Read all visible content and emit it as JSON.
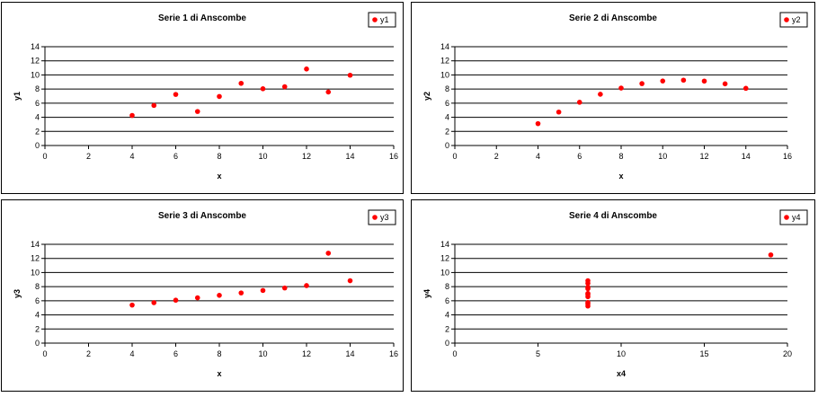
{
  "colors": {
    "marker": "#ff0000",
    "grid": "#000000",
    "axis": "#000000"
  },
  "chart_data": [
    {
      "type": "scatter",
      "title": "Serie 1 di Anscombe",
      "xlabel": "x",
      "ylabel": "y1",
      "xlim": [
        0,
        16
      ],
      "ylim": [
        0,
        14
      ],
      "xticks": [
        0,
        2,
        4,
        6,
        8,
        10,
        12,
        14,
        16
      ],
      "yticks": [
        0,
        2,
        4,
        6,
        8,
        10,
        12,
        14
      ],
      "grid": "horizontal",
      "legend_position": "top-right",
      "series": [
        {
          "name": "y1",
          "x": [
            4,
            5,
            6,
            7,
            8,
            9,
            10,
            11,
            12,
            13,
            14
          ],
          "y": [
            4.26,
            5.68,
            7.24,
            4.82,
            6.95,
            8.81,
            8.04,
            8.33,
            10.84,
            7.58,
            9.96
          ]
        }
      ]
    },
    {
      "type": "scatter",
      "title": "Serie 2 di Anscombe",
      "xlabel": "x",
      "ylabel": "y2",
      "xlim": [
        0,
        16
      ],
      "ylim": [
        0,
        14
      ],
      "xticks": [
        0,
        2,
        4,
        6,
        8,
        10,
        12,
        14,
        16
      ],
      "yticks": [
        0,
        2,
        4,
        6,
        8,
        10,
        12,
        14
      ],
      "grid": "horizontal",
      "legend_position": "top-right",
      "series": [
        {
          "name": "y2",
          "x": [
            4,
            5,
            6,
            7,
            8,
            9,
            10,
            11,
            12,
            13,
            14
          ],
          "y": [
            3.1,
            4.74,
            6.13,
            7.26,
            8.14,
            8.77,
            9.14,
            9.26,
            9.13,
            8.74,
            8.1
          ]
        }
      ]
    },
    {
      "type": "scatter",
      "title": "Serie 3 di Anscombe",
      "xlabel": "x",
      "ylabel": "y3",
      "xlim": [
        0,
        16
      ],
      "ylim": [
        0,
        14
      ],
      "xticks": [
        0,
        2,
        4,
        6,
        8,
        10,
        12,
        14,
        16
      ],
      "yticks": [
        0,
        2,
        4,
        6,
        8,
        10,
        12,
        14
      ],
      "grid": "horizontal",
      "legend_position": "top-right",
      "series": [
        {
          "name": "y3",
          "x": [
            4,
            5,
            6,
            7,
            8,
            9,
            10,
            11,
            12,
            13,
            14
          ],
          "y": [
            5.39,
            5.73,
            6.08,
            6.42,
            6.77,
            7.11,
            7.46,
            7.81,
            8.15,
            12.74,
            8.84
          ]
        }
      ]
    },
    {
      "type": "scatter",
      "title": "Serie 4 di Anscombe",
      "xlabel": "x4",
      "ylabel": "y4",
      "xlim": [
        0,
        20
      ],
      "ylim": [
        0,
        14
      ],
      "xticks": [
        0,
        5,
        10,
        15,
        20
      ],
      "yticks": [
        0,
        2,
        4,
        6,
        8,
        10,
        12,
        14
      ],
      "grid": "horizontal",
      "legend_position": "top-right",
      "series": [
        {
          "name": "y4",
          "x": [
            8,
            8,
            8,
            8,
            8,
            8,
            8,
            19,
            8,
            8,
            8
          ],
          "y": [
            6.58,
            5.76,
            7.71,
            8.84,
            8.47,
            7.04,
            5.25,
            12.5,
            5.56,
            7.91,
            6.89
          ]
        }
      ]
    }
  ]
}
